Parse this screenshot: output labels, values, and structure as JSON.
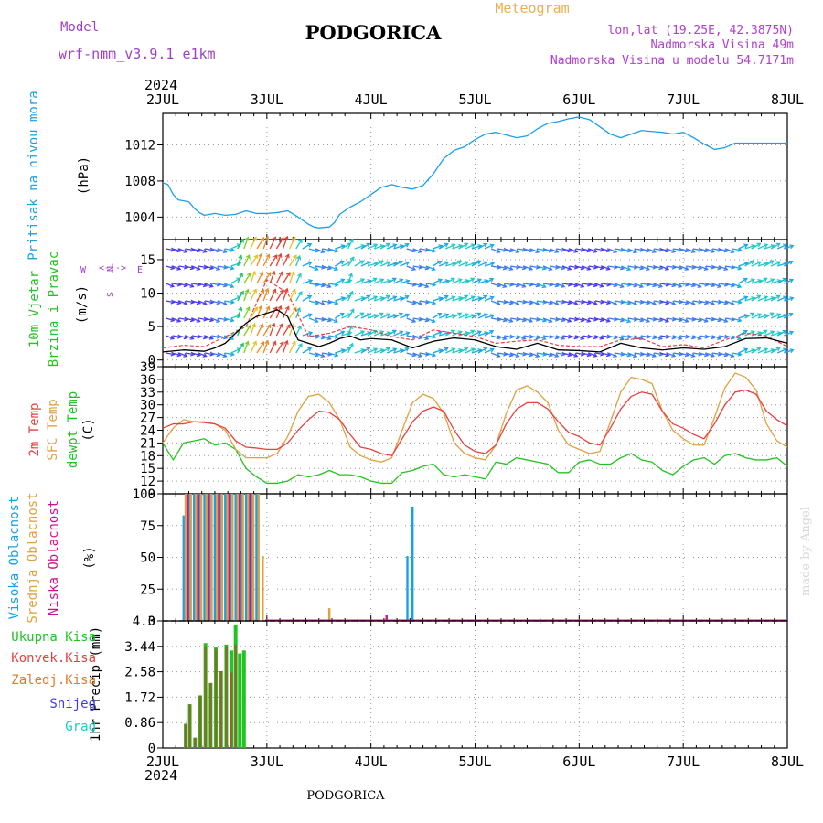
{
  "header": {
    "model_label": "Model",
    "model_name": "wrf-nmm_v3.9.1 e1km",
    "title": "PODGORICA",
    "meteogram": "Meteogram",
    "coords": "lon,lat (19.25E, 42.3875N)",
    "elevation": "Nadmorska Visina 49m",
    "model_elevation": "Nadmorska Visina u modelu 54.7171m",
    "footer_title": "PODGORICA",
    "credit": "made by Angel",
    "year_top": "2024",
    "year_bottom": "2024"
  },
  "colors": {
    "pressure": "#1aa0e6",
    "green": "#22c322",
    "red": "#e84040",
    "orange": "#e89a2a",
    "magenta": "#d01090",
    "purple": "#9a44d8",
    "blue": "#3c3cf0",
    "cyan": "#20c8c8",
    "dewpt": "#22c322",
    "sfc": "#e0a040",
    "t2m": "#e84040",
    "high_cloud": "#1aa0e6",
    "mid_cloud": "#e0a040",
    "low_cloud": "#d01090",
    "snow": "#4040e0"
  },
  "chart_data": [
    {
      "type": "line",
      "panel": "pressure",
      "ylabel": [
        "Pritisak na nivou mora",
        "(hPa)"
      ],
      "x_ticks": [
        "2JUL",
        "3JUL",
        "4JUL",
        "5JUL",
        "6JUL",
        "7JUL",
        "8JUL"
      ],
      "y_ticks": [
        1004,
        1008,
        1012
      ],
      "ylim": [
        1001.5,
        1015.5
      ],
      "x_unit": "day offset from 2JUL",
      "series": [
        {
          "x": [
            0,
            0.05,
            0.1,
            0.15,
            0.2,
            0.25,
            0.3,
            0.35,
            0.4,
            0.5,
            0.6,
            0.7,
            0.8,
            0.9,
            1.0,
            1.1,
            1.2,
            1.3,
            1.4,
            1.45,
            1.5,
            1.6,
            1.65,
            1.7,
            1.8,
            1.9,
            2.0,
            2.1,
            2.2,
            2.3,
            2.4,
            2.5,
            2.6,
            2.7,
            2.8,
            2.9,
            3.0,
            3.1,
            3.2,
            3.3,
            3.4,
            3.5,
            3.6,
            3.7,
            3.8,
            3.9,
            4.0,
            4.1,
            4.2,
            4.3,
            4.4,
            4.5,
            4.6,
            4.7,
            4.8,
            4.9,
            5.0,
            5.1,
            5.2,
            5.3,
            5.4,
            5.5,
            5.6,
            5.7,
            5.8,
            5.9,
            6.0
          ],
          "y": [
            1007.8,
            1007.6,
            1006.5,
            1005.9,
            1005.8,
            1005.7,
            1005.0,
            1004.5,
            1004.2,
            1004.4,
            1004.2,
            1004.3,
            1004.7,
            1004.4,
            1004.4,
            1004.5,
            1004.7,
            1004.0,
            1003.2,
            1002.9,
            1002.8,
            1002.9,
            1003.4,
            1004.3,
            1005.1,
            1005.7,
            1006.5,
            1007.3,
            1007.6,
            1007.3,
            1007.1,
            1007.5,
            1008.8,
            1010.5,
            1011.4,
            1011.8,
            1012.6,
            1013.2,
            1013.4,
            1013.1,
            1012.8,
            1013.0,
            1013.8,
            1014.4,
            1014.6,
            1014.9,
            1015.1,
            1014.8,
            1014.0,
            1013.2,
            1012.8,
            1013.2,
            1013.6,
            1013.5,
            1013.4,
            1013.2,
            1013.4,
            1012.8,
            1012.1,
            1011.5,
            1011.7,
            1012.2,
            1012.2,
            1012.2,
            1012.2,
            1012.2,
            1012.2
          ]
        }
      ]
    },
    {
      "type": "line",
      "panel": "wind",
      "ylabel": [
        "10m Vjetar",
        "Brzina i Pravac",
        "(m/s)"
      ],
      "compass": {
        "n": "N",
        "s": "S",
        "e": "E",
        "w": "W",
        "arrows": "<-|->"
      },
      "y_ticks": [
        0,
        5,
        10,
        15
      ],
      "ylim": [
        -1,
        18
      ],
      "x_unit": "day offset from 2JUL",
      "series": [
        {
          "name": "speed",
          "x": [
            0,
            0.2,
            0.4,
            0.5,
            0.6,
            0.7,
            0.8,
            0.9,
            1.0,
            1.1,
            1.2,
            1.3,
            1.4,
            1.5,
            1.6,
            1.7,
            1.8,
            1.9,
            2.0,
            2.2,
            2.4,
            2.6,
            2.8,
            3.0,
            3.2,
            3.4,
            3.6,
            3.8,
            4.0,
            4.2,
            4.4,
            4.6,
            4.8,
            5.0,
            5.2,
            5.4,
            5.6,
            5.8,
            6.0
          ],
          "y": [
            1.2,
            1.5,
            1.3,
            1.8,
            2.5,
            4.0,
            5.5,
            6.5,
            7.0,
            7.5,
            6.5,
            3.0,
            2.5,
            2.0,
            2.5,
            3.2,
            3.6,
            3.0,
            3.2,
            3.0,
            1.8,
            2.8,
            3.3,
            3.0,
            2.0,
            1.6,
            2.5,
            1.5,
            1.4,
            1.2,
            2.5,
            1.8,
            1.5,
            1.8,
            1.6,
            2.0,
            3.2,
            3.3,
            2.5
          ]
        },
        {
          "name": "gust",
          "x": [
            0,
            0.2,
            0.4,
            0.6,
            0.8,
            1.0,
            1.2,
            1.4,
            1.6,
            1.8,
            2.0,
            2.2,
            2.4,
            2.6,
            2.8,
            3.0,
            3.2,
            3.4,
            3.6,
            3.8,
            4.0,
            4.2,
            4.4,
            4.6,
            4.8,
            5.0,
            5.2,
            5.4,
            5.6,
            5.8,
            6.0
          ],
          "y": [
            1.8,
            2.2,
            2.0,
            3.5,
            5.0,
            12.0,
            10.0,
            3.5,
            4.0,
            5.0,
            4.5,
            3.5,
            3.0,
            4.5,
            4.0,
            3.5,
            2.5,
            2.8,
            3.0,
            2.2,
            2.0,
            2.0,
            3.0,
            3.2,
            2.0,
            2.3,
            1.8,
            3.0,
            4.0,
            3.6,
            2.0
          ]
        }
      ]
    },
    {
      "type": "line",
      "panel": "temperature",
      "ylabel": [
        "2m Temp",
        "SFC Temp",
        "dewpt Temp",
        "(C)"
      ],
      "y_ticks": [
        9,
        12,
        15,
        18,
        21,
        24,
        27,
        30,
        33,
        36,
        39
      ],
      "ylim": [
        9,
        39
      ],
      "x_unit": "day offset from 2JUL",
      "series": [
        {
          "name": "2m Temp",
          "x": [
            0,
            0.1,
            0.2,
            0.3,
            0.4,
            0.5,
            0.6,
            0.7,
            0.8,
            0.9,
            1.0,
            1.1,
            1.2,
            1.3,
            1.4,
            1.5,
            1.6,
            1.7,
            1.8,
            1.9,
            2.0,
            2.1,
            2.2,
            2.3,
            2.4,
            2.5,
            2.6,
            2.7,
            2.8,
            2.9,
            3.0,
            3.1,
            3.2,
            3.3,
            3.4,
            3.5,
            3.6,
            3.7,
            3.8,
            3.9,
            4.0,
            4.1,
            4.2,
            4.3,
            4.4,
            4.5,
            4.6,
            4.7,
            4.8,
            4.9,
            5.0,
            5.1,
            5.2,
            5.3,
            5.4,
            5.5,
            5.6,
            5.7,
            5.8,
            5.9,
            6.0
          ],
          "y": [
            24.5,
            25.5,
            25.5,
            26.0,
            25.8,
            25.5,
            24.5,
            21.5,
            20.0,
            19.8,
            19.5,
            19.5,
            21.0,
            24.0,
            26.5,
            28.5,
            28.2,
            26.5,
            23.0,
            20.0,
            19.5,
            18.5,
            18.0,
            22.0,
            26.0,
            28.5,
            29.5,
            28.5,
            24.0,
            20.5,
            19.0,
            18.5,
            20.5,
            25.5,
            29.0,
            30.5,
            30.5,
            29.0,
            26.0,
            23.5,
            22.5,
            21.0,
            20.5,
            24.5,
            29.0,
            32.0,
            33.0,
            32.5,
            28.5,
            25.5,
            24.5,
            23.0,
            22.0,
            25.5,
            30.0,
            33.0,
            33.5,
            32.5,
            28.5,
            26.5,
            25.0
          ]
        },
        {
          "name": "SFC Temp",
          "x": [
            0,
            0.1,
            0.2,
            0.3,
            0.4,
            0.5,
            0.6,
            0.7,
            0.8,
            0.9,
            1.0,
            1.1,
            1.2,
            1.3,
            1.4,
            1.5,
            1.6,
            1.7,
            1.8,
            1.9,
            2.0,
            2.1,
            2.2,
            2.3,
            2.4,
            2.5,
            2.6,
            2.7,
            2.8,
            2.9,
            3.0,
            3.1,
            3.2,
            3.3,
            3.4,
            3.5,
            3.6,
            3.7,
            3.8,
            3.9,
            4.0,
            4.1,
            4.2,
            4.3,
            4.4,
            4.5,
            4.6,
            4.7,
            4.8,
            4.9,
            5.0,
            5.1,
            5.2,
            5.3,
            5.4,
            5.5,
            5.6,
            5.7,
            5.8,
            5.9,
            6.0
          ],
          "y": [
            21.0,
            24.5,
            26.5,
            26.0,
            26.0,
            25.5,
            24.0,
            19.5,
            17.5,
            17.5,
            17.5,
            18.5,
            22.5,
            28.5,
            32.0,
            32.5,
            30.5,
            26.5,
            20.0,
            18.0,
            17.0,
            16.5,
            17.5,
            24.0,
            30.5,
            32.5,
            31.5,
            28.0,
            21.0,
            18.5,
            17.5,
            17.0,
            20.5,
            28.0,
            33.5,
            34.5,
            33.0,
            30.5,
            24.0,
            20.5,
            19.5,
            18.5,
            19.0,
            26.0,
            33.0,
            36.5,
            36.0,
            35.0,
            28.5,
            24.0,
            22.0,
            20.5,
            20.5,
            27.0,
            34.0,
            37.5,
            36.5,
            33.5,
            25.5,
            21.5,
            20.0
          ]
        },
        {
          "name": "dewpt Temp",
          "x": [
            0,
            0.1,
            0.2,
            0.3,
            0.4,
            0.5,
            0.6,
            0.7,
            0.8,
            0.9,
            1.0,
            1.1,
            1.2,
            1.3,
            1.4,
            1.5,
            1.6,
            1.7,
            1.8,
            1.9,
            2.0,
            2.1,
            2.2,
            2.3,
            2.4,
            2.5,
            2.6,
            2.7,
            2.8,
            2.9,
            3.0,
            3.1,
            3.2,
            3.3,
            3.4,
            3.5,
            3.6,
            3.7,
            3.8,
            3.9,
            4.0,
            4.1,
            4.2,
            4.3,
            4.4,
            4.5,
            4.6,
            4.7,
            4.8,
            4.9,
            5.0,
            5.1,
            5.2,
            5.3,
            5.4,
            5.5,
            5.6,
            5.7,
            5.8,
            5.9,
            6.0
          ],
          "y": [
            21.0,
            17.0,
            21.0,
            21.5,
            22.0,
            20.5,
            21.0,
            19.5,
            15.0,
            13.0,
            11.5,
            11.5,
            12.0,
            13.5,
            13.0,
            13.5,
            14.5,
            13.5,
            13.5,
            13.0,
            12.0,
            11.5,
            11.5,
            14.0,
            14.5,
            15.5,
            16.0,
            13.5,
            13.0,
            13.5,
            13.0,
            12.5,
            16.5,
            16.0,
            17.5,
            17.0,
            16.5,
            16.0,
            14.0,
            14.0,
            16.5,
            17.0,
            16.0,
            16.0,
            17.5,
            18.5,
            17.0,
            16.5,
            14.5,
            13.5,
            15.5,
            17.0,
            17.5,
            16.0,
            18.0,
            18.5,
            17.5,
            17.0,
            17.0,
            17.5,
            15.5
          ]
        }
      ]
    },
    {
      "type": "bar",
      "panel": "cloud",
      "ylabel": [
        "Visoka Oblacnost",
        "Srednja Oblacnost",
        "Niska Oblacnost",
        "(%)"
      ],
      "y_ticks": [
        0,
        25,
        50,
        75,
        100
      ],
      "ylim": [
        0,
        100
      ],
      "x_unit": "day offset from 2JUL",
      "series": [
        {
          "name": "Visoka Oblacnost",
          "x": [
            0.2,
            0.25,
            0.3,
            0.35,
            0.4,
            0.45,
            0.5,
            0.55,
            0.6,
            0.65,
            0.7,
            0.75,
            0.8,
            0.85,
            0.9,
            2.35,
            2.4
          ],
          "y": [
            83,
            100,
            100,
            100,
            100,
            100,
            100,
            100,
            100,
            100,
            100,
            100,
            100,
            100,
            100,
            51,
            90
          ]
        },
        {
          "name": "Srednja Oblacnost",
          "x": [
            0.22,
            0.27,
            0.32,
            0.37,
            0.42,
            0.47,
            0.52,
            0.57,
            0.62,
            0.67,
            0.72,
            0.77,
            0.82,
            0.87,
            0.92,
            0.96,
            1.6
          ],
          "y": [
            100,
            100,
            100,
            100,
            100,
            100,
            100,
            100,
            100,
            100,
            100,
            100,
            100,
            100,
            100,
            51,
            10
          ]
        },
        {
          "name": "Niska Oblacnost",
          "x": [
            0.24,
            0.34,
            0.44,
            0.54,
            0.64,
            0.74,
            0.84,
            2.15
          ],
          "y": [
            100,
            100,
            100,
            100,
            100,
            100,
            100,
            5
          ]
        }
      ]
    },
    {
      "type": "bar",
      "panel": "precip",
      "ylabel": [
        "1hr Precip (mm)"
      ],
      "legend": [
        "Ukupna Kisa",
        "Konvek.Kisa",
        "Zaledj.Kisa",
        "Snijeg",
        "Grad"
      ],
      "y_ticks": [
        0,
        0.86,
        1.72,
        2.58,
        3.44,
        4.3
      ],
      "ylim": [
        0,
        4.3
      ],
      "x_unit": "day offset from 2JUL",
      "series": [
        {
          "name": "Ukupna Kisa",
          "x": [
            0.22,
            0.26,
            0.31,
            0.36,
            0.41,
            0.46,
            0.51,
            0.56,
            0.61,
            0.66,
            0.7,
            0.74,
            0.78
          ],
          "y": [
            0.82,
            1.48,
            0.35,
            1.78,
            3.55,
            2.2,
            3.4,
            2.6,
            3.5,
            3.3,
            4.18,
            3.2,
            3.3
          ]
        },
        {
          "name": "Konvek.Kisa",
          "x": [
            0.22,
            0.26,
            0.31,
            0.36,
            0.41,
            0.46,
            0.51,
            0.56,
            0.61,
            0.66,
            0.7,
            0.74
          ],
          "y": [
            0.82,
            1.48,
            0.35,
            1.78,
            3.45,
            2.2,
            3.35,
            2.6,
            3.45,
            2.55,
            3.5,
            0
          ]
        }
      ]
    }
  ],
  "x_axis": {
    "ticks": [
      "2JUL",
      "3JUL",
      "4JUL",
      "5JUL",
      "6JUL",
      "7JUL",
      "8JUL"
    ]
  }
}
